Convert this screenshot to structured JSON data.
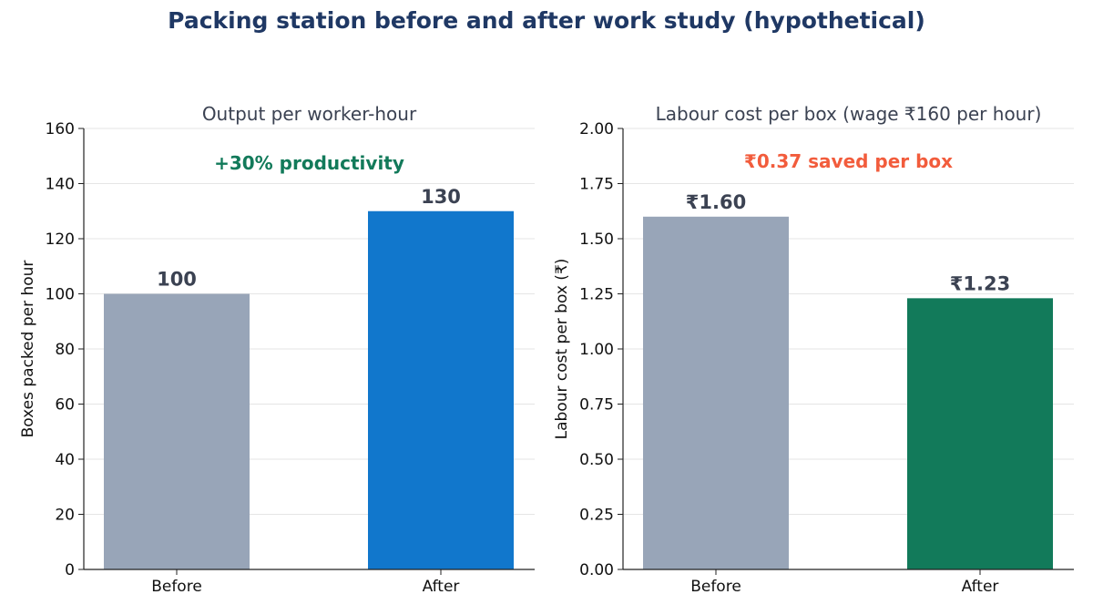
{
  "suptitle": "Packing station before and after work study (hypothetical)",
  "colors": {
    "title": "#1f3864",
    "subtitle": "#3b4252",
    "before_bar": "#98a5b8",
    "after_bar_left": "#1177cc",
    "after_bar_right": "#127a5a",
    "annotation_left": "#127a5a",
    "annotation_right": "#f25c3c",
    "value_label": "#3b4252",
    "grid": "#e5e5e5",
    "axis": "#222222"
  },
  "chart_data": [
    {
      "type": "bar",
      "title": "Output per worker-hour",
      "categories": [
        "Before",
        "After"
      ],
      "values": [
        100,
        130
      ],
      "value_labels": [
        "100",
        "130"
      ],
      "bar_colors": [
        "#98a5b8",
        "#1177cc"
      ],
      "xlabel": "",
      "ylabel": "Boxes packed per hour",
      "ylim": [
        0,
        160
      ],
      "yticks": [
        0,
        20,
        40,
        60,
        80,
        100,
        120,
        140,
        160
      ],
      "ytick_labels": [
        "0",
        "20",
        "40",
        "60",
        "80",
        "100",
        "120",
        "140",
        "160"
      ],
      "annotation": "+30% productivity",
      "annotation_color": "#127a5a",
      "grid": true,
      "legend": "none"
    },
    {
      "type": "bar",
      "title": "Labour cost per box (wage ₹160 per hour)",
      "categories": [
        "Before",
        "After"
      ],
      "values": [
        1.6,
        1.23
      ],
      "value_labels": [
        "₹1.60",
        "₹1.23"
      ],
      "bar_colors": [
        "#98a5b8",
        "#127a5a"
      ],
      "xlabel": "",
      "ylabel": "Labour cost per box (₹)",
      "ylim": [
        0,
        2.0
      ],
      "yticks": [
        0,
        0.25,
        0.5,
        0.75,
        1.0,
        1.25,
        1.5,
        1.75,
        2.0
      ],
      "ytick_labels": [
        "0.00",
        "0.25",
        "0.50",
        "0.75",
        "1.00",
        "1.25",
        "1.50",
        "1.75",
        "2.00"
      ],
      "annotation": "₹0.37 saved per box",
      "annotation_color": "#f25c3c",
      "grid": true,
      "legend": "none"
    }
  ]
}
